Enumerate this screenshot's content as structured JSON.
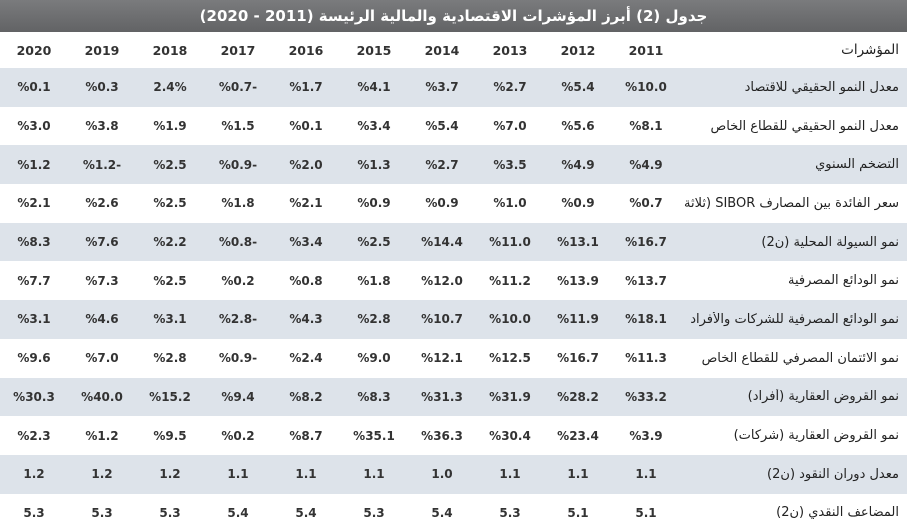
{
  "title": "جدول (2) أبرز المؤشرات الاقتصادية والمالية الرئيسة (2011 - 2020)",
  "header": {
    "label": "المؤشرات",
    "years": [
      "2011",
      "2012",
      "2013",
      "2014",
      "2015",
      "2016",
      "2017",
      "2018",
      "2019",
      "2020"
    ]
  },
  "rows": [
    {
      "label": "معدل النمو الحقيقي للاقتصاد",
      "values": [
        "%10.0",
        "%5.4",
        "%2.7",
        "%3.7",
        "%4.1",
        "%1.7",
        "%0.7-",
        "2.4%",
        "%0.3",
        "%0.1"
      ]
    },
    {
      "label": "معدل النمو الحقيقي للقطاع الخاص",
      "values": [
        "%8.1",
        "%5.6",
        "%7.0",
        "%5.4",
        "%3.4",
        "%0.1",
        "%1.5",
        "%1.9",
        "%3.8",
        "%3.0"
      ]
    },
    {
      "label": "التضخم السنوي",
      "values": [
        "%4.9",
        "%4.9",
        "%3.5",
        "%2.7",
        "%1.3",
        "%2.0",
        "%0.9-",
        "%2.5",
        "%1.2-",
        "%1.2"
      ]
    },
    {
      "label": "سعر الفائدة بين المصارف SIBOR (ثلاثة أشهر)",
      "values": [
        "%0.7",
        "%0.9",
        "%1.0",
        "%0.9",
        "%0.9",
        "%2.1",
        "%1.8",
        "%2.5",
        "%2.6",
        "%2.1"
      ]
    },
    {
      "label": "نمو السيولة المحلية (ن2)",
      "values": [
        "%16.7",
        "%13.1",
        "%11.0",
        "%14.4",
        "%2.5",
        "%3.4",
        "%0.8-",
        "%2.2",
        "%7.6",
        "%8.3"
      ]
    },
    {
      "label": "نمو الودائع المصرفية",
      "values": [
        "%13.7",
        "%13.9",
        "%11.2",
        "%12.0",
        "%1.8",
        "%0.8",
        "%0.2",
        "%2.5",
        "%7.3",
        "%7.7"
      ]
    },
    {
      "label": "نمو الودائع المصرفية للشركات والأفراد",
      "values": [
        "%18.1",
        "%11.9",
        "%10.0",
        "%10.7",
        "%2.8",
        "%4.3",
        "%2.8-",
        "%3.1",
        "%4.6",
        "%3.1"
      ]
    },
    {
      "label": "نمو الائتمان المصرفي للقطاع الخاص",
      "values": [
        "%11.3",
        "%16.7",
        "%12.5",
        "%12.1",
        "%9.0",
        "%2.4",
        "%0.9-",
        "%2.8",
        "%7.0",
        "%9.6"
      ]
    },
    {
      "label": "نمو القروض العقارية (أفراد)",
      "values": [
        "%33.2",
        "%28.2",
        "%31.9",
        "%31.3",
        "%8.3",
        "%8.2",
        "%9.4",
        "%15.2",
        "%40.0",
        "%30.3"
      ]
    },
    {
      "label": "نمو القروض العقارية (شركات)",
      "values": [
        "%3.9",
        "%23.4",
        "%30.4",
        "%36.3",
        "%35.1",
        "%8.7",
        "%0.2",
        "%9.5",
        "%1.2",
        "%2.3"
      ]
    },
    {
      "label": "معدل دوران النقود (ن2)",
      "values": [
        "1.1",
        "1.1",
        "1.1",
        "1.0",
        "1.1",
        "1.1",
        "1.1",
        "1.2",
        "1.2",
        "1.2"
      ]
    },
    {
      "label": "المضاعف النقدي (ن2)",
      "values": [
        "5.1",
        "5.1",
        "5.3",
        "5.4",
        "5.3",
        "5.4",
        "5.4",
        "5.3",
        "5.3",
        "5.3"
      ]
    }
  ]
}
